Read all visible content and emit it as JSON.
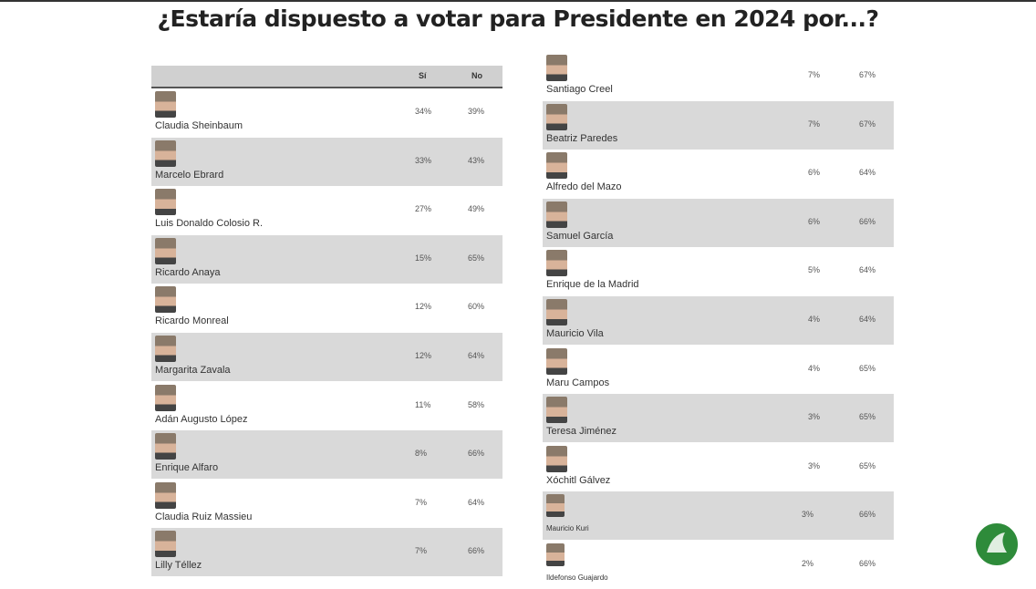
{
  "title": "¿Estaría dispuesto a votar para Presidente en 2024 por...?",
  "left_table": {
    "columns": [
      "Sí",
      "No"
    ],
    "rows": [
      [
        "Claudia Sheinbaum",
        "34%",
        "39%"
      ],
      [
        "Marcelo Ebrard",
        "33%",
        "43%"
      ],
      [
        "Luis Donaldo Colosio R.",
        "27%",
        "49%"
      ],
      [
        "Ricardo Anaya",
        "15%",
        "65%"
      ],
      [
        "Ricardo Monreal",
        "12%",
        "60%"
      ],
      [
        "Margarita Zavala",
        "12%",
        "64%"
      ],
      [
        "Adán Augusto López",
        "11%",
        "58%"
      ],
      [
        "Enrique Alfaro",
        "8%",
        "66%"
      ],
      [
        "Claudia Ruiz Massieu",
        "7%",
        "64%"
      ],
      [
        "Lilly Téllez",
        "7%",
        "66%"
      ]
    ]
  },
  "right_table": {
    "rows": [
      [
        "Santiago Creel",
        "7%",
        "67%"
      ],
      [
        "Beatriz Paredes",
        "7%",
        "67%"
      ],
      [
        "Alfredo del Mazo",
        "6%",
        "64%"
      ],
      [
        "Samuel García",
        "6%",
        "66%"
      ],
      [
        "Enrique de la Madrid",
        "5%",
        "64%"
      ],
      [
        "Mauricio Vila",
        "4%",
        "64%"
      ],
      [
        "Maru Campos",
        "4%",
        "65%"
      ],
      [
        "Teresa Jiménez",
        "3%",
        "65%"
      ],
      [
        "Xóchitl Gálvez",
        "3%",
        "65%"
      ],
      [
        "Mauricio Kuri",
        "3%",
        "66%"
      ],
      [
        "Ildefonso Guajardo",
        "2%",
        "66%"
      ]
    ]
  }
}
